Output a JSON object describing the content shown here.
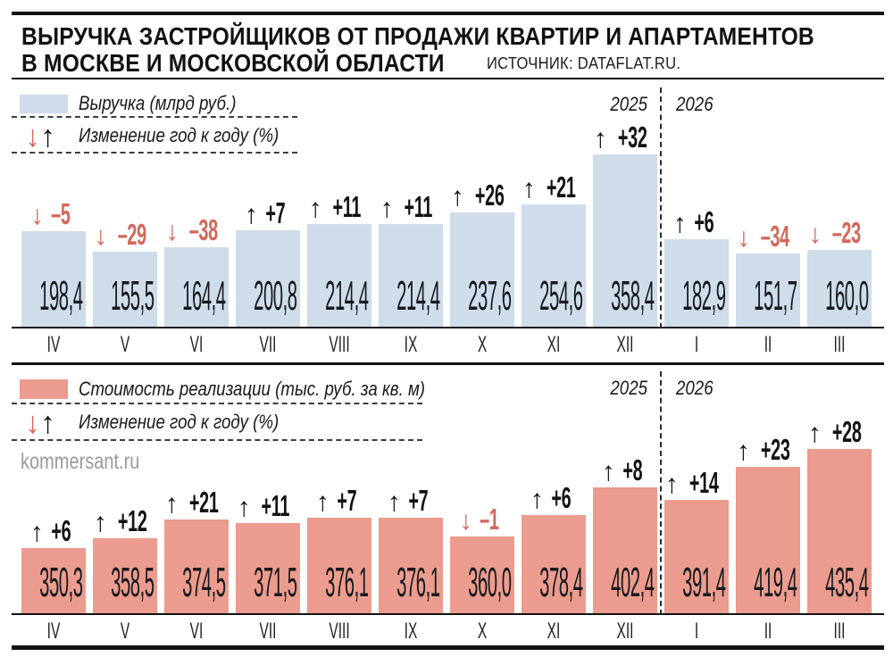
{
  "header": {
    "title_line1": "ВЫРУЧКА ЗАСТРОЙЩИКОВ ОТ ПРОДАЖИ КВАРТИР И АПАРТАМЕНТОВ",
    "title_line2": "В МОСКВЕ И МОСКОВСКОЙ ОБЛАСТИ",
    "source": "ИСТОЧНИК: DATAFLAT.RU."
  },
  "watermark": "kommersant.ru",
  "icons": {
    "down_arrow": "↓",
    "up_arrow": "↑"
  },
  "colors": {
    "revenue_bar": "#cfdcea",
    "price_bar": "#eb9c8e",
    "negative": "#d2685a",
    "positive": "#131313",
    "watermark_gray": "#9a9a9a"
  },
  "chart_data": [
    {
      "type": "bar",
      "title": "Выручка (млрд руб.)",
      "change_legend": "Изменение год к году (%)",
      "year_left": "2025",
      "year_right": "2026",
      "divider_between": [
        "XII",
        "I"
      ],
      "categories": [
        "IV",
        "V",
        "VI",
        "VII",
        "VIII",
        "IX",
        "X",
        "XI",
        "XII",
        "I",
        "II",
        "III"
      ],
      "values": [
        198.4,
        155.5,
        164.4,
        200.8,
        214.4,
        214.4,
        237.6,
        254.6,
        358.4,
        182.9,
        151.7,
        160.0
      ],
      "value_labels": [
        "198,4",
        "155,5",
        "164,4",
        "200,8",
        "214,4",
        "214,4",
        "237,6",
        "254,6",
        "358,4",
        "182,9",
        "151,7",
        "160,0"
      ],
      "change_pct": [
        -5,
        -29,
        -38,
        7,
        11,
        11,
        26,
        21,
        32,
        6,
        -34,
        -23
      ],
      "change_labels": [
        "–5",
        "–29",
        "–38",
        "+7",
        "+11",
        "+11",
        "+26",
        "+21",
        "+32",
        "+6",
        "–34",
        "–23"
      ],
      "bar_color": "#cfdcea",
      "ylim": [
        0,
        380
      ],
      "bar_baseline_value": 0,
      "grid": false,
      "legend_position": "top-left"
    },
    {
      "type": "bar",
      "title": "Стоимость реализации (тыс. руб. за кв. м)",
      "change_legend": "Изменение год к году (%)",
      "year_left": "2025",
      "year_right": "2026",
      "divider_between": [
        "XII",
        "I"
      ],
      "categories": [
        "IV",
        "V",
        "VI",
        "VII",
        "VIII",
        "IX",
        "X",
        "XI",
        "XII",
        "I",
        "II",
        "III"
      ],
      "values": [
        350.3,
        358.5,
        374.5,
        371.5,
        376.1,
        376.1,
        360.0,
        378.4,
        402.4,
        391.4,
        419.4,
        435.4
      ],
      "value_labels": [
        "350,3",
        "358,5",
        "374,5",
        "371,5",
        "376,1",
        "376,1",
        "360,0",
        "378,4",
        "402,4",
        "391,4",
        "419,4",
        "435,4"
      ],
      "change_pct": [
        6,
        12,
        21,
        11,
        7,
        7,
        -1,
        6,
        8,
        14,
        23,
        28
      ],
      "change_labels": [
        "+6",
        "+12",
        "+21",
        "+11",
        "+7",
        "+7",
        "–1",
        "+6",
        "+8",
        "+14",
        "+23",
        "+28"
      ],
      "bar_color": "#eb9c8e",
      "ylim": [
        294,
        445
      ],
      "bar_baseline_value": 294,
      "grid": false,
      "legend_position": "top-left"
    }
  ]
}
